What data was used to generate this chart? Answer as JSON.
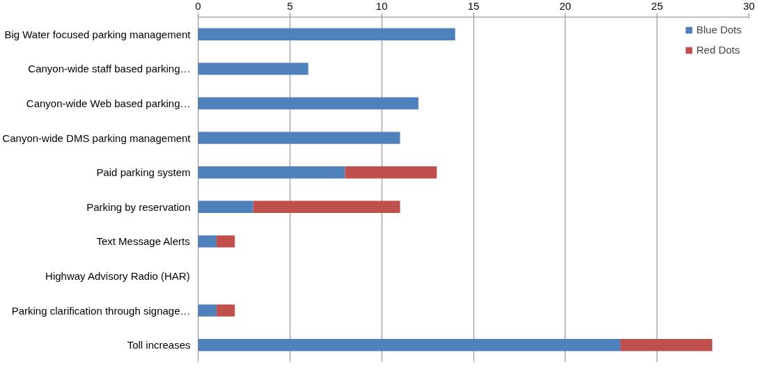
{
  "chart_data": {
    "type": "bar",
    "orientation": "horizontal",
    "stacked": true,
    "categories": [
      "Big Water focused parking management",
      "Canyon-wide staff based parking…",
      "Canyon-wide Web based parking…",
      "Canyon-wide DMS parking management",
      "Paid parking system",
      "Parking by reservation",
      "Text Message Alerts",
      "Highway Advisory Radio (HAR)",
      "Parking clarification through signage…",
      "Toll increases"
    ],
    "series": [
      {
        "name": "Blue Dots",
        "color": "#4f81bd",
        "values": [
          14,
          6,
          12,
          11,
          8,
          3,
          1,
          0,
          1,
          23
        ]
      },
      {
        "name": "Red Dots",
        "color": "#c0504d",
        "values": [
          0,
          0,
          0,
          0,
          5,
          8,
          1,
          0,
          1,
          5
        ]
      }
    ],
    "xlim": [
      0,
      30
    ],
    "xticks": [
      0,
      5,
      10,
      15,
      20,
      25,
      30
    ],
    "grid": "x",
    "legend": "top right"
  }
}
